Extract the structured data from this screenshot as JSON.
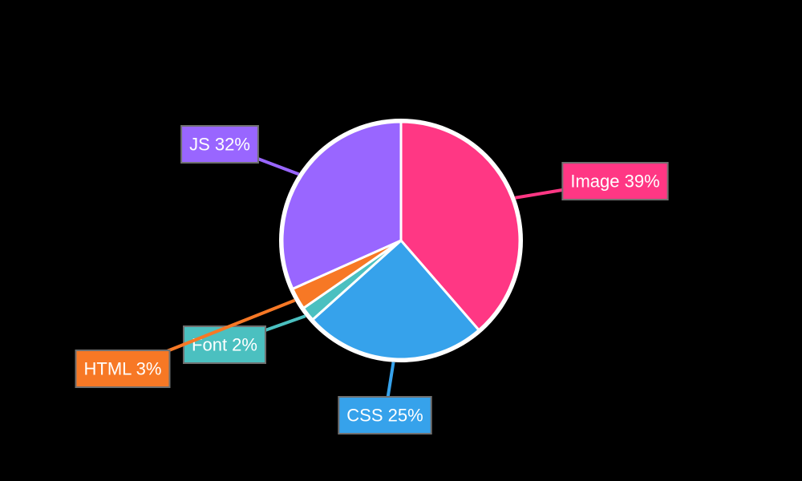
{
  "chart_data": {
    "type": "pie",
    "title": "",
    "slices": [
      {
        "label": "Image",
        "value": 39,
        "display": "Image 39%",
        "color": "#FF3784"
      },
      {
        "label": "CSS",
        "value": 25,
        "display": "CSS 25%",
        "color": "#36A2EB"
      },
      {
        "label": "Font",
        "value": 2,
        "display": "Font 2%",
        "color": "#4BC0C0"
      },
      {
        "label": "HTML",
        "value": 3,
        "display": "HTML 3%",
        "color": "#F77825"
      },
      {
        "label": "JS",
        "value": 32,
        "display": "JS 32%",
        "color": "#9966FF"
      }
    ],
    "start_angle_deg": 0,
    "direction": "clockwise",
    "background": "#000000",
    "slice_border_color": "#FFFFFF",
    "label_text_color": "#FFFFFF",
    "legend": "none",
    "labels": "outside with leader lines"
  }
}
